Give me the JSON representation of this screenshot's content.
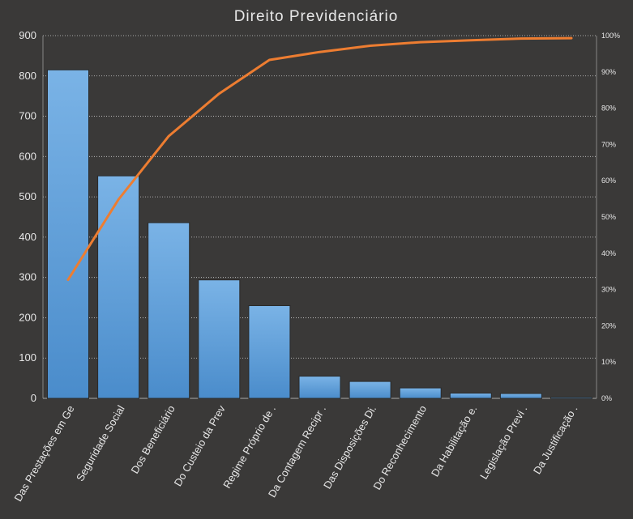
{
  "chart_data": {
    "type": "bar",
    "title": "Direito Previdenciário",
    "categories": [
      "Das Prestações em Ge",
      "Seguridade Social",
      "Dos Beneficiário",
      "Do Custeio da Prev",
      "Regime Próprio de .",
      "Da Contagem Recipr .",
      "Das Disposições Di.",
      "Do Reconhecimento",
      "Da Habilitação e.",
      "Legislação Previ .",
      "Da Justificação ."
    ],
    "series": [
      {
        "type": "bar",
        "axis": "left",
        "values": [
          815,
          552,
          436,
          294,
          230,
          55,
          42,
          26,
          13,
          12,
          3
        ]
      },
      {
        "type": "line",
        "axis": "right",
        "values": [
          32.7,
          54.8,
          72.3,
          84.0,
          93.3,
          95.5,
          97.2,
          98.2,
          98.7,
          99.2,
          99.3
        ]
      }
    ],
    "y_left": {
      "min": 0,
      "max": 900,
      "ticks": [
        "0",
        "100",
        "200",
        "300",
        "400",
        "500",
        "600",
        "700",
        "800",
        "900"
      ]
    },
    "y_right": {
      "min": 0,
      "max": 100,
      "ticks": [
        "0%",
        "10%",
        "20%",
        "30%",
        "40%",
        "50%",
        "60%",
        "70%",
        "80%",
        "90%",
        "100%"
      ]
    },
    "grid": true,
    "legend": "none",
    "colors": {
      "background": "#3a3938",
      "bar": "#5b9bd5",
      "bar_light": "#7ab3e6",
      "line": "#ed7d31",
      "grid": "#d0d0d0",
      "text": "#e6e6e6"
    }
  }
}
